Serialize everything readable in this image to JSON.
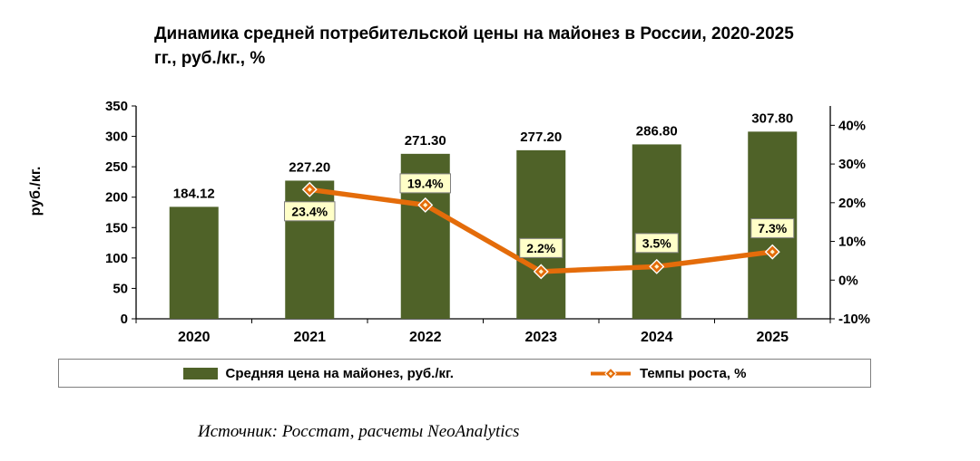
{
  "title": {
    "line1": "Динамика средней потребительской цены на майонез в России, 2020-2025",
    "line2": "гг., руб./кг., %"
  },
  "source": "Источник: Росстат, расчеты NeoAnalytics",
  "legend": {
    "bars": "Средняя цена на майонез, руб./кг.",
    "line": "Темпы роста, %"
  },
  "colors": {
    "bar": "#4F6228",
    "line": "#E46C0A",
    "marker_center": "#FFF2CC",
    "label_bg": "#FFFFC8",
    "label_border": "#808080"
  },
  "chart_data": {
    "type": "bar+line combo",
    "title": "Динамика средней потребительской цены на майонез в России, 2020-2025 гг., руб./кг., %",
    "categories": [
      "2020",
      "2021",
      "2022",
      "2023",
      "2024",
      "2025"
    ],
    "series": [
      {
        "name": "Средняя цена на майонез, руб./кг.",
        "type": "bar",
        "axis": "left",
        "values": [
          184.12,
          227.2,
          271.3,
          277.2,
          286.8,
          307.8
        ]
      },
      {
        "name": "Темпы роста, %",
        "type": "line",
        "axis": "right",
        "values": [
          null,
          23.4,
          19.4,
          2.2,
          3.5,
          7.3
        ]
      }
    ],
    "left_axis": {
      "label": "руб./кг.",
      "min": 0,
      "max": 350,
      "step": 50
    },
    "right_axis": {
      "min": -10,
      "max": 45,
      "tick_max": 40,
      "step": 10,
      "suffix": "%"
    },
    "label_offsets": [
      0,
      24,
      -24,
      -26,
      -26,
      -26
    ],
    "grid": false,
    "legend_position": "bottom"
  }
}
